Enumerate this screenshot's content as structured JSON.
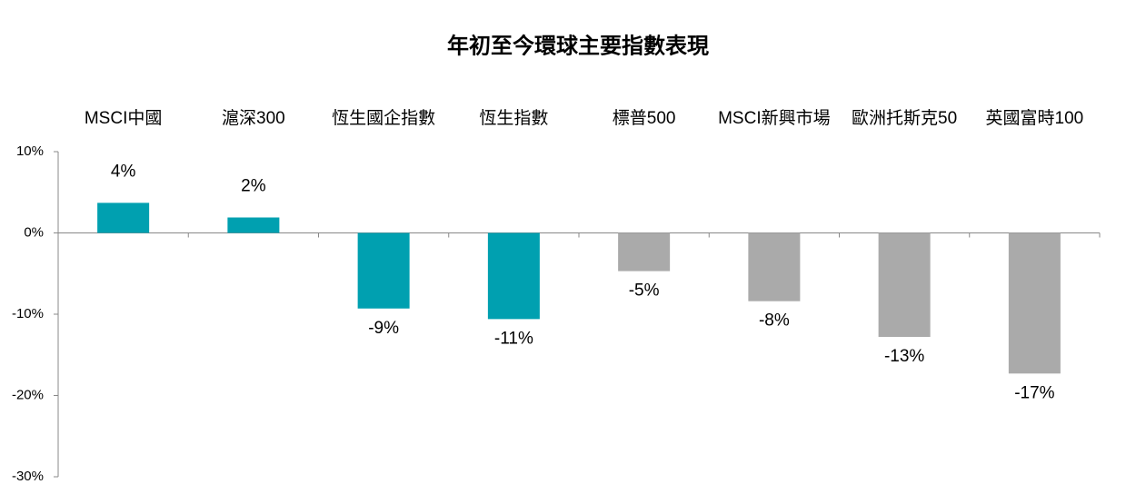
{
  "chart_data": {
    "type": "bar",
    "title": "年初至今環球主要指數表現",
    "categories": [
      "MSCI中國",
      "滬深300",
      "恆生國企指數",
      "恆生指數",
      "標普500",
      "MSCI新興市場",
      "歐洲托斯克50",
      "英國富時100"
    ],
    "values": [
      3.7,
      1.9,
      -9.3,
      -10.6,
      -4.7,
      -8.4,
      -12.8,
      -17.3
    ],
    "value_labels": [
      "4%",
      "2%",
      "-9%",
      "-11%",
      "-5%",
      "-8%",
      "-13%",
      "-17%"
    ],
    "colors": [
      "#00a0b0",
      "#00a0b0",
      "#00a0b0",
      "#00a0b0",
      "#aaaaaa",
      "#aaaaaa",
      "#aaaaaa",
      "#aaaaaa"
    ],
    "ylim": [
      -30,
      10
    ],
    "yticks": [
      {
        "value": 10,
        "label": "10%"
      },
      {
        "value": 0,
        "label": "0%"
      },
      {
        "value": -10,
        "label": "-10%"
      },
      {
        "value": -20,
        "label": "-20%"
      },
      {
        "value": -30,
        "label": "-30%"
      }
    ],
    "grid": false
  }
}
